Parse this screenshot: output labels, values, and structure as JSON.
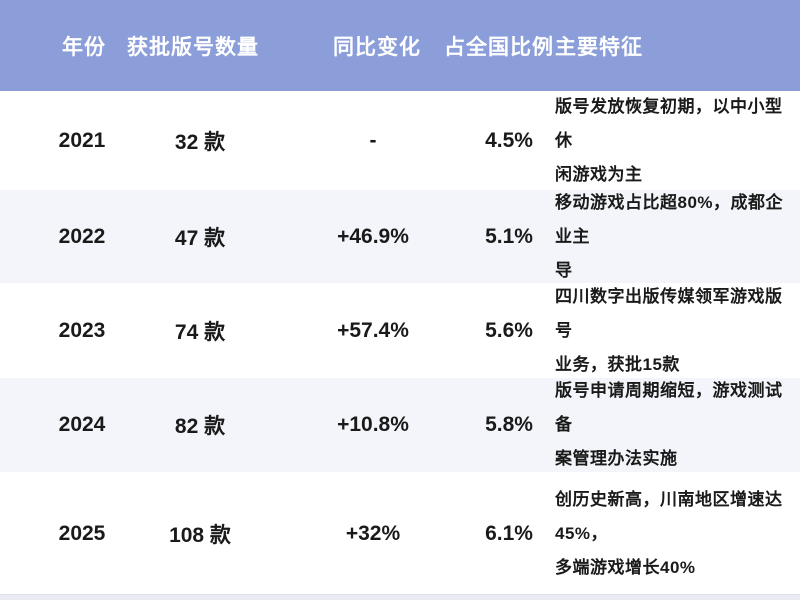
{
  "table": {
    "title_semantic": "game-license-approvals-by-year",
    "header": {
      "columns": [
        "年份",
        "获批版号数量",
        "同比变化",
        "占全国比例",
        "主要特征"
      ]
    },
    "rows": [
      {
        "year": "2021",
        "count": "32 款",
        "yoy": "-",
        "share": "4.5%",
        "features": "版号发放恢复初期，以中小型休\n闲游戏为主"
      },
      {
        "year": "2022",
        "count": "47 款",
        "yoy": "+46.9%",
        "share": "5.1%",
        "features": "移动游戏占比超80%，成都企业主\n导"
      },
      {
        "year": "2023",
        "count": "74 款",
        "yoy": "+57.4%",
        "share": "5.6%",
        "features": "四川数字出版传媒领军游戏版号\n业务，获批15款"
      },
      {
        "year": "2024",
        "count": "82 款",
        "yoy": "+10.8%",
        "share": "5.8%",
        "features": "版号申请周期缩短，游戏测试备\n案管理办法实施"
      },
      {
        "year": "2025",
        "count": "108 款",
        "yoy": "+32%",
        "share": "6.1%",
        "features": "创历史新高，川南地区增速达45%，\n多端游戏增长40%"
      }
    ],
    "colors": {
      "header_bg": "#8B9EDA",
      "header_text": "#FFFFFF",
      "row_bg": "#FFFFFF",
      "row_stripe_bg": "#F3F5FA",
      "cell_text": "#1A1A1A"
    }
  },
  "chart_data": {
    "type": "table",
    "title": "",
    "columns": [
      "年份",
      "获批版号数量",
      "同比变化",
      "占全国比例",
      "主要特征"
    ],
    "categories": [
      "2021",
      "2022",
      "2023",
      "2024",
      "2025"
    ],
    "series": [
      {
        "name": "获批版号数量(款)",
        "values": [
          32,
          47,
          74,
          82,
          108
        ]
      },
      {
        "name": "同比变化(%)",
        "values": [
          null,
          46.9,
          57.4,
          10.8,
          32
        ]
      },
      {
        "name": "占全国比例(%)",
        "values": [
          4.5,
          5.1,
          5.6,
          5.8,
          6.1
        ]
      }
    ],
    "annotations": [
      "版号发放恢复初期，以中小型休闲游戏为主",
      "移动游戏占比超80%，成都企业主导",
      "四川数字出版传媒领军游戏版号业务，获批15款",
      "版号申请周期缩短，游戏测试备案管理办法实施",
      "创历史新高，川南地区增速达45%，多端游戏增长40%"
    ]
  }
}
